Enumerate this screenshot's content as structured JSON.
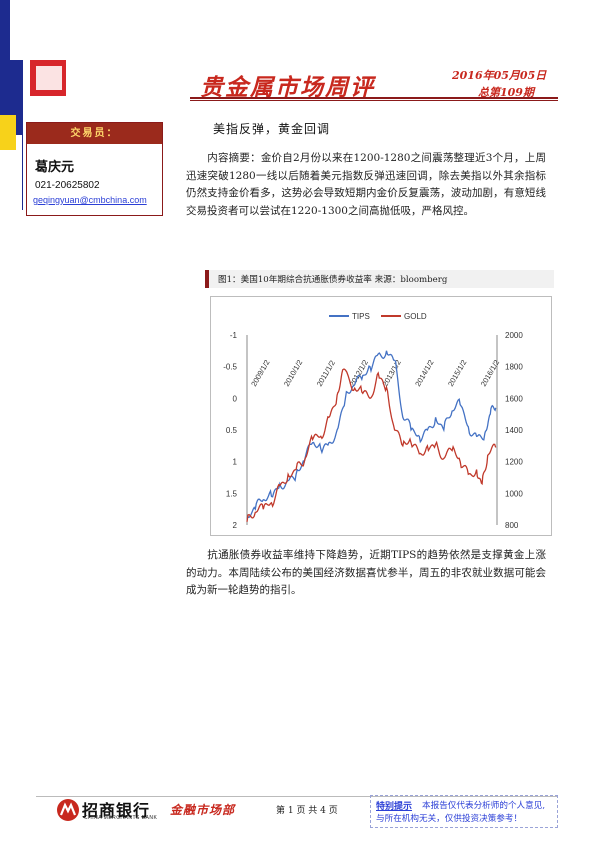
{
  "header": {
    "title": "贵金属市场周评",
    "date": "2016年05月05日",
    "issue": "总第109期"
  },
  "trader": {
    "label": "交易员：",
    "name": "葛庆元",
    "phone": "021-20625802",
    "email": "geqingyuan@cmbchina.com"
  },
  "article": {
    "title": "美指反弹，黄金回调",
    "summary": "内容摘要：金价自2月份以来在1200-1280之间震荡整理近3个月，上周迅速突破1280一线以后随着美元指数反弹迅速回调，除去美指以外其余指标仍然支持金价看多，这势必会导致短期内金价反复震荡，波动加剧，有意短线交易投资者可以尝试在1220-1300之间高抛低吸，严格风控。",
    "body": "抗通胀债券收益率维持下降趋势，近期TIPS的趋势依然是支撑黄金上涨的动力。本周陆续公布的美国经济数据喜忧参半，周五的非农就业数据可能会成为新一轮趋势的指引。"
  },
  "figure": {
    "caption": "图1：美国10年期综合抗通胀债券收益率   来源：bloomberg"
  },
  "chart_data": {
    "type": "line",
    "series": [
      {
        "name": "TIPS",
        "color": "#4472c4",
        "axis": "left",
        "points": [
          [
            "2008-10",
            1.9
          ],
          [
            "2009-01",
            1.75
          ],
          [
            "2009-04",
            1.6
          ],
          [
            "2009-07",
            1.55
          ],
          [
            "2009-10",
            1.35
          ],
          [
            "2010-01",
            1.3
          ],
          [
            "2010-04",
            1.2
          ],
          [
            "2010-07",
            1.0
          ],
          [
            "2010-10",
            0.7
          ],
          [
            "2011-01",
            0.8
          ],
          [
            "2011-04",
            0.7
          ],
          [
            "2011-07",
            0.5
          ],
          [
            "2011-10",
            0.0
          ],
          [
            "2012-01",
            -0.2
          ],
          [
            "2012-04",
            -0.3
          ],
          [
            "2012-07",
            -0.5
          ],
          [
            "2012-10",
            -0.7
          ],
          [
            "2013-01",
            -0.75
          ],
          [
            "2013-04",
            -0.6
          ],
          [
            "2013-07",
            0.3
          ],
          [
            "2013-10",
            0.5
          ],
          [
            "2014-01",
            0.6
          ],
          [
            "2014-04",
            0.5
          ],
          [
            "2014-07",
            0.3
          ],
          [
            "2014-10",
            0.5
          ],
          [
            "2015-01",
            0.2
          ],
          [
            "2015-04",
            0.1
          ],
          [
            "2015-07",
            0.45
          ],
          [
            "2015-10",
            0.6
          ],
          [
            "2016-01",
            0.55
          ],
          [
            "2016-03",
            0.25
          ],
          [
            "2016-05",
            0.15
          ]
        ]
      },
      {
        "name": "GOLD",
        "color": "#c0392b",
        "axis": "right",
        "points": [
          [
            "2008-10",
            820
          ],
          [
            "2009-01",
            880
          ],
          [
            "2009-04",
            900
          ],
          [
            "2009-07",
            940
          ],
          [
            "2009-10",
            1050
          ],
          [
            "2010-01",
            1120
          ],
          [
            "2010-04",
            1150
          ],
          [
            "2010-07",
            1200
          ],
          [
            "2010-10",
            1340
          ],
          [
            "2011-01",
            1360
          ],
          [
            "2011-04",
            1480
          ],
          [
            "2011-07",
            1620
          ],
          [
            "2011-09",
            1780
          ],
          [
            "2012-01",
            1650
          ],
          [
            "2012-04",
            1640
          ],
          [
            "2012-07",
            1600
          ],
          [
            "2012-10",
            1760
          ],
          [
            "2013-01",
            1670
          ],
          [
            "2013-04",
            1400
          ],
          [
            "2013-07",
            1300
          ],
          [
            "2013-10",
            1320
          ],
          [
            "2014-01",
            1250
          ],
          [
            "2014-04",
            1300
          ],
          [
            "2014-07",
            1310
          ],
          [
            "2014-10",
            1220
          ],
          [
            "2015-01",
            1270
          ],
          [
            "2015-04",
            1200
          ],
          [
            "2015-07",
            1120
          ],
          [
            "2015-10",
            1150
          ],
          [
            "2015-12",
            1060
          ],
          [
            "2016-02",
            1240
          ],
          [
            "2016-05",
            1290
          ]
        ]
      }
    ],
    "x_tick_labels": [
      "2009/1/2",
      "2010/1/2",
      "2011/1/2",
      "2012/1/2",
      "2013/1/2",
      "2014/1/2",
      "2015/1/2",
      "2016/1/2"
    ],
    "left_axis": {
      "ticks": [
        "-1",
        "-0.5",
        "0",
        "0.5",
        "1",
        "1.5",
        "2"
      ],
      "range": [
        2,
        -1
      ],
      "inverted": true
    },
    "right_axis": {
      "ticks": [
        "2000",
        "1800",
        "1600",
        "1400",
        "1200",
        "1000",
        "800"
      ],
      "range": [
        800,
        2000
      ]
    },
    "legend_position": "top",
    "grid": false
  },
  "footer": {
    "bank": "招商银行",
    "bank_en": "CHINA MERCHANTS BANK",
    "dept": "金融市场部",
    "page": "第 1 页 共 4 页",
    "disclaimer_label": "特别提示",
    "disclaimer_1": "本报告仅代表分析师的个人意见,",
    "disclaimer_2": "与所在机构无关，仅供投资决策参考！"
  }
}
